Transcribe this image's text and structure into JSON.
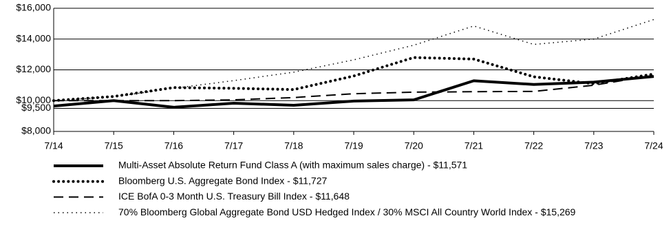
{
  "chart_data": {
    "type": "line",
    "categories": [
      "7/14",
      "7/15",
      "7/16",
      "7/17",
      "7/18",
      "7/19",
      "7/20",
      "7/21",
      "7/22",
      "7/23",
      "7/24"
    ],
    "ylim": [
      8000,
      16000
    ],
    "yticks": [
      {
        "value": 8000,
        "label": "$8,000"
      },
      {
        "value": 9500,
        "label": "$9,500"
      },
      {
        "value": 10000,
        "label": "$10,000"
      },
      {
        "value": 12000,
        "label": "$12,000"
      },
      {
        "value": 14000,
        "label": "$14,000"
      },
      {
        "value": 16000,
        "label": "$16,000"
      }
    ],
    "grid": true,
    "series": [
      {
        "name": "Multi-Asset Absolute Return Fund Class A (with maximum sales charge)  - $11,571",
        "color": "#000000",
        "dash": "solid",
        "width": 4,
        "values": [
          9650,
          10000,
          9570,
          9830,
          9700,
          9970,
          10050,
          11290,
          11050,
          11200,
          11571
        ]
      },
      {
        "name": "Bloomberg U.S. Aggregate Bond Index - $11,727",
        "color": "#000000",
        "dash": "dotted",
        "width": 4,
        "values": [
          10000,
          10270,
          10850,
          10800,
          10720,
          11600,
          12800,
          12700,
          11550,
          11100,
          11727
        ]
      },
      {
        "name": "ICE BofA 0-3 Month U.S. Treasury Bill Index - $11,648",
        "color": "#000000",
        "dash": "dashed",
        "width": 2,
        "values": [
          10000,
          10000,
          10000,
          10050,
          10200,
          10450,
          10550,
          10580,
          10600,
          11000,
          11648
        ]
      },
      {
        "name": "70% Bloomberg Global Aggregate Bond USD Hedged Index / 30% MSCI All Country World Index - $15,269",
        "color": "#000000",
        "dash": "fine-dotted",
        "width": 1.5,
        "values": [
          10000,
          10250,
          10800,
          11300,
          11850,
          12650,
          13600,
          14850,
          13650,
          14000,
          15269
        ]
      }
    ]
  }
}
